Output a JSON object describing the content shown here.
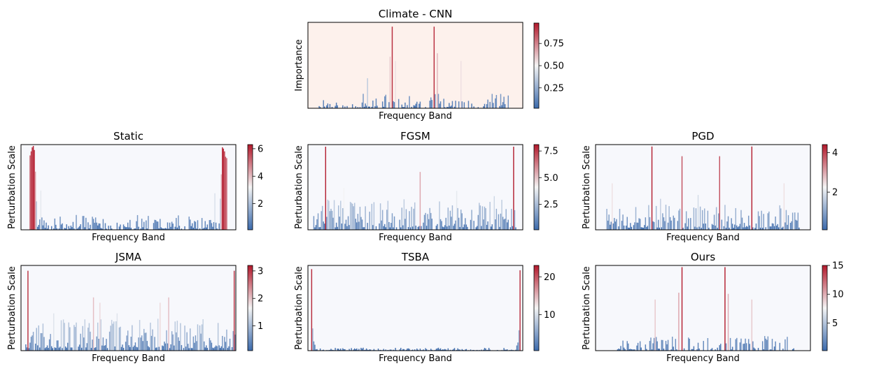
{
  "colormap": {
    "low": "#3b6aac",
    "mid": "#f5f5f5",
    "high": "#b2182b"
  },
  "chart_data": [
    {
      "type": "bar",
      "title": "Climate - CNN",
      "xlabel": "Frequency Band",
      "ylabel": "Importance",
      "ylim": [
        0,
        1.0
      ],
      "background": "#fdf1ec",
      "n_bins": 200,
      "colorbar": {
        "min": 0.02,
        "max": 0.98,
        "ticks": [
          "0.25",
          "0.50",
          "0.75"
        ],
        "tick_values": [
          0.25,
          0.5,
          0.75
        ]
      },
      "spikes": [
        {
          "bin": 78,
          "value": 0.95
        },
        {
          "bin": 117,
          "value": 0.95
        },
        {
          "bin": 76,
          "value": 0.6
        },
        {
          "bin": 81,
          "value": 0.55
        },
        {
          "bin": 120,
          "value": 0.64
        },
        {
          "bin": 55,
          "value": 0.35
        },
        {
          "bin": 142,
          "value": 0.55
        }
      ],
      "noise": {
        "start": 10,
        "end": 190,
        "max": 0.17,
        "density": 0.55,
        "seed": 11
      }
    },
    {
      "type": "bar",
      "title": "Static",
      "xlabel": "Frequency Band",
      "ylabel": "Perturbation Scale",
      "ylim": [
        0,
        6.3
      ],
      "background": "#f7f8fc",
      "n_bins": 200,
      "colorbar": {
        "min": 0.1,
        "max": 6.3,
        "ticks": [
          "2",
          "4",
          "6"
        ],
        "tick_values": [
          2,
          4,
          6
        ]
      },
      "spikes": [
        {
          "bin": 8,
          "value": 5.5
        },
        {
          "bin": 9,
          "value": 5.8
        },
        {
          "bin": 10,
          "value": 6.1
        },
        {
          "bin": 11,
          "value": 6.2
        },
        {
          "bin": 12,
          "value": 5.9
        },
        {
          "bin": 13,
          "value": 4.3
        },
        {
          "bin": 14,
          "value": 2.1
        },
        {
          "bin": 185,
          "value": 2.3
        },
        {
          "bin": 186,
          "value": 4.1
        },
        {
          "bin": 187,
          "value": 6.1
        },
        {
          "bin": 188,
          "value": 6.0
        },
        {
          "bin": 189,
          "value": 5.8
        },
        {
          "bin": 190,
          "value": 5.4
        },
        {
          "bin": 191,
          "value": 5.3
        },
        {
          "bin": 18,
          "value": 2.9
        },
        {
          "bin": 180,
          "value": 2.7
        }
      ],
      "noise": {
        "start": 15,
        "end": 185,
        "max": 1.1,
        "density": 0.75,
        "seed": 23
      }
    },
    {
      "type": "bar",
      "title": "FGSM",
      "xlabel": "Frequency Band",
      "ylabel": "Perturbation Scale",
      "ylim": [
        0,
        8.1
      ],
      "background": "#f7f8fc",
      "n_bins": 200,
      "colorbar": {
        "min": 0.1,
        "max": 8.1,
        "ticks": [
          "2.5",
          "5.0",
          "7.5"
        ],
        "tick_values": [
          2.5,
          5.0,
          7.5
        ]
      },
      "spikes": [
        {
          "bin": 16,
          "value": 7.9
        },
        {
          "bin": 191,
          "value": 7.9
        },
        {
          "bin": 104,
          "value": 5.5
        },
        {
          "bin": 33,
          "value": 4.0
        },
        {
          "bin": 138,
          "value": 3.7
        },
        {
          "bin": 173,
          "value": 3.2
        },
        {
          "bin": 89,
          "value": 2.9
        }
      ],
      "noise": {
        "start": 5,
        "end": 195,
        "max": 2.9,
        "density": 0.85,
        "seed": 37
      }
    },
    {
      "type": "bar",
      "title": "PGD",
      "xlabel": "Frequency Band",
      "ylabel": "Perturbation Scale",
      "ylim": [
        0,
        4.4
      ],
      "background": "#f7f8fc",
      "n_bins": 200,
      "colorbar": {
        "min": 0.1,
        "max": 4.4,
        "ticks": [
          "2",
          "4"
        ],
        "tick_values": [
          2,
          4
        ]
      },
      "spikes": [
        {
          "bin": 52,
          "value": 4.3
        },
        {
          "bin": 80,
          "value": 3.8
        },
        {
          "bin": 115,
          "value": 3.8
        },
        {
          "bin": 145,
          "value": 4.3
        },
        {
          "bin": 15,
          "value": 2.4
        },
        {
          "bin": 175,
          "value": 2.4
        },
        {
          "bin": 95,
          "value": 1.8
        },
        {
          "bin": 60,
          "value": 1.6
        }
      ],
      "noise": {
        "start": 10,
        "end": 190,
        "max": 1.3,
        "density": 0.85,
        "seed": 51
      }
    },
    {
      "type": "bar",
      "title": "JSMA",
      "xlabel": "Frequency Band",
      "ylabel": "Perturbation Scale",
      "ylim": [
        0,
        3.2
      ],
      "background": "#f7f8fc",
      "n_bins": 200,
      "colorbar": {
        "min": 0.1,
        "max": 3.2,
        "ticks": [
          "1",
          "2",
          "3"
        ],
        "tick_values": [
          1,
          2,
          3
        ]
      },
      "spikes": [
        {
          "bin": 6,
          "value": 3.0
        },
        {
          "bin": 198,
          "value": 3.0
        },
        {
          "bin": 67,
          "value": 2.0
        },
        {
          "bin": 73,
          "value": 1.8
        },
        {
          "bin": 129,
          "value": 1.8
        },
        {
          "bin": 137,
          "value": 2.0
        },
        {
          "bin": 89,
          "value": 1.4
        },
        {
          "bin": 30,
          "value": 1.4
        }
      ],
      "noise": {
        "start": 4,
        "end": 200,
        "max": 1.2,
        "density": 0.9,
        "seed": 67
      }
    },
    {
      "type": "bar",
      "title": "TSBA",
      "xlabel": "Frequency Band",
      "ylabel": "Perturbation Scale",
      "ylim": [
        0,
        23
      ],
      "background": "#f7f8fc",
      "n_bins": 200,
      "colorbar": {
        "min": 0.5,
        "max": 23,
        "ticks": [
          "10",
          "20"
        ],
        "tick_values": [
          10,
          20
        ]
      },
      "spikes": [
        {
          "bin": 3,
          "value": 22.0
        },
        {
          "bin": 197,
          "value": 21.7
        },
        {
          "bin": 4,
          "value": 6.0
        },
        {
          "bin": 5,
          "value": 2.5
        },
        {
          "bin": 6,
          "value": 1.6
        },
        {
          "bin": 196,
          "value": 5.5
        },
        {
          "bin": 195,
          "value": 2.2
        },
        {
          "bin": 194,
          "value": 1.4
        }
      ],
      "noise": {
        "start": 6,
        "end": 194,
        "max": 0.8,
        "density": 0.95,
        "seed": 79
      }
    },
    {
      "type": "bar",
      "title": "Ours",
      "xlabel": "Frequency Band",
      "ylabel": "Perturbation Scale",
      "ylim": [
        0,
        15
      ],
      "background": "#f7f8fc",
      "n_bins": 200,
      "colorbar": {
        "min": 0.2,
        "max": 15,
        "ticks": [
          "5",
          "10",
          "15"
        ],
        "tick_values": [
          5,
          10,
          15
        ]
      },
      "spikes": [
        {
          "bin": 80,
          "value": 14.7
        },
        {
          "bin": 120,
          "value": 14.7
        },
        {
          "bin": 77,
          "value": 10.2
        },
        {
          "bin": 123,
          "value": 10.0
        },
        {
          "bin": 55,
          "value": 9.0
        },
        {
          "bin": 145,
          "value": 9.0
        }
      ],
      "noise": {
        "start": 20,
        "end": 185,
        "max": 2.6,
        "density": 0.6,
        "seed": 97
      }
    }
  ]
}
